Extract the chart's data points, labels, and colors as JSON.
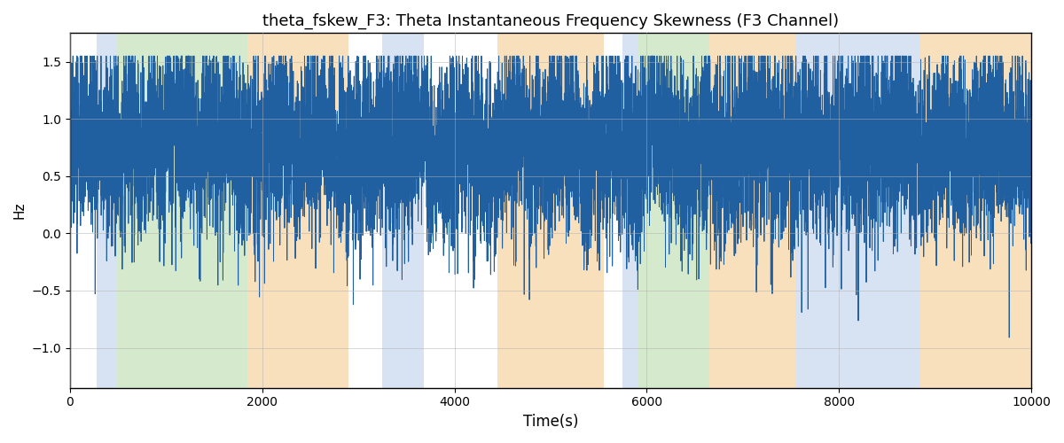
{
  "title": "theta_fskew_F3: Theta Instantaneous Frequency Skewness (F3 Channel)",
  "xlabel": "Time(s)",
  "ylabel": "Hz",
  "xlim": [
    0,
    10000
  ],
  "ylim": [
    -1.35,
    1.75
  ],
  "line_color": "#2060a0",
  "line_width": 0.7,
  "bands": [
    {
      "xmin": 280,
      "xmax": 480,
      "color": "#b0c8e8",
      "alpha": 0.5
    },
    {
      "xmin": 480,
      "xmax": 1850,
      "color": "#98cc80",
      "alpha": 0.4
    },
    {
      "xmin": 1850,
      "xmax": 2900,
      "color": "#f5c888",
      "alpha": 0.55
    },
    {
      "xmin": 3250,
      "xmax": 3680,
      "color": "#b0c8e8",
      "alpha": 0.5
    },
    {
      "xmin": 4450,
      "xmax": 5550,
      "color": "#f5c888",
      "alpha": 0.55
    },
    {
      "xmin": 5750,
      "xmax": 5900,
      "color": "#b0c8e8",
      "alpha": 0.5
    },
    {
      "xmin": 5900,
      "xmax": 6650,
      "color": "#98cc80",
      "alpha": 0.4
    },
    {
      "xmin": 6650,
      "xmax": 7550,
      "color": "#f5c888",
      "alpha": 0.55
    },
    {
      "xmin": 7550,
      "xmax": 8850,
      "color": "#b0c8e8",
      "alpha": 0.5
    },
    {
      "xmin": 8850,
      "xmax": 10000,
      "color": "#f5c888",
      "alpha": 0.55
    }
  ],
  "xticks": [
    0,
    2000,
    4000,
    6000,
    8000,
    10000
  ],
  "yticks": [
    -1.0,
    -0.5,
    0.0,
    0.5,
    1.0,
    1.5
  ],
  "seed": 42,
  "n_points": 10000,
  "figsize": [
    12,
    5
  ],
  "dpi": 100,
  "signal_base": 0.78,
  "signal_noise": 0.42,
  "clip_low": -1.25,
  "clip_high": 1.55
}
